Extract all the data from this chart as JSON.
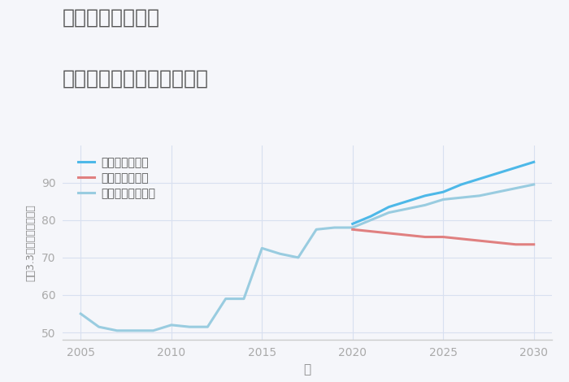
{
  "title_line1": "福岡県西戸崎駅の",
  "title_line2": "中古マンションの価格推移",
  "xlabel": "年",
  "ylabel": "坪（3.3㎡）単価（万円）",
  "xlim": [
    2004,
    2031
  ],
  "ylim": [
    48,
    100
  ],
  "xticks": [
    2005,
    2010,
    2015,
    2020,
    2025,
    2030
  ],
  "yticks": [
    50,
    60,
    70,
    80,
    90
  ],
  "background_color": "#f5f6fa",
  "grid_color": "#d8e0f0",
  "legend_labels": [
    "グッドシナリオ",
    "バッドシナリオ",
    "ノーマルシナリオ"
  ],
  "good_color": "#4db8e8",
  "bad_color": "#e08080",
  "normal_color": "#99cce0",
  "normal_years": [
    2005,
    2006,
    2007,
    2008,
    2009,
    2010,
    2011,
    2012,
    2013,
    2014,
    2015,
    2016,
    2017,
    2018,
    2019,
    2020,
    2021,
    2022,
    2023,
    2024,
    2025,
    2026,
    2027,
    2028,
    2029,
    2030
  ],
  "normal_values": [
    55.0,
    51.5,
    50.5,
    50.5,
    50.5,
    52.0,
    51.5,
    51.5,
    59.0,
    59.0,
    72.5,
    71.0,
    70.0,
    77.5,
    78.0,
    78.0,
    80.0,
    82.0,
    83.0,
    84.0,
    85.5,
    86.0,
    86.5,
    87.5,
    88.5,
    89.5
  ],
  "good_years": [
    2020,
    2021,
    2022,
    2023,
    2024,
    2025,
    2026,
    2027,
    2028,
    2029,
    2030
  ],
  "good_values": [
    79.0,
    81.0,
    83.5,
    85.0,
    86.5,
    87.5,
    89.5,
    91.0,
    92.5,
    94.0,
    95.5
  ],
  "bad_years": [
    2020,
    2021,
    2022,
    2023,
    2024,
    2025,
    2026,
    2027,
    2028,
    2029,
    2030
  ],
  "bad_values": [
    77.5,
    77.0,
    76.5,
    76.0,
    75.5,
    75.5,
    75.0,
    74.5,
    74.0,
    73.5,
    73.5
  ],
  "title_color": "#555555",
  "tick_color": "#aaaaaa",
  "label_color": "#888888"
}
